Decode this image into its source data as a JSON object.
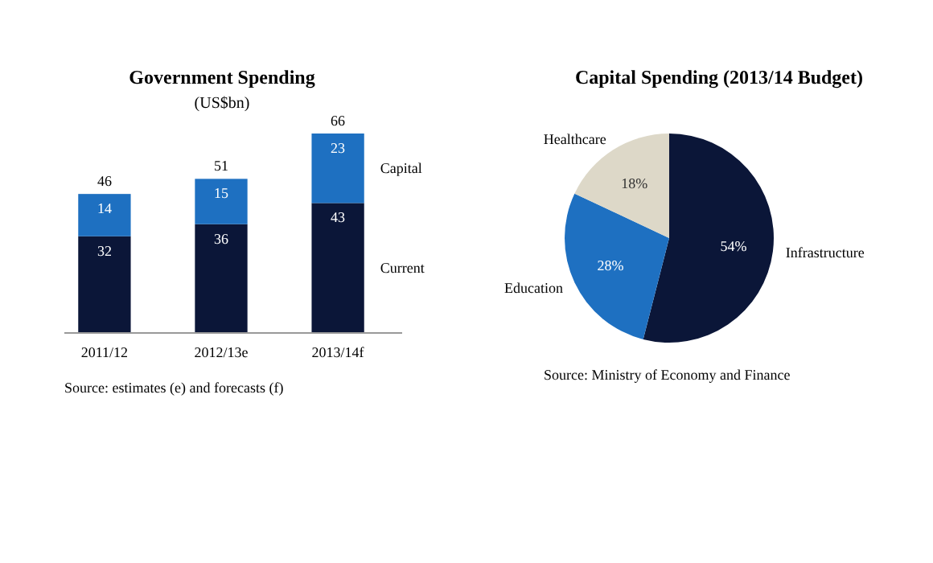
{
  "chart_data": [
    {
      "type": "bar",
      "title": "Government Spending",
      "subtitle": "(US$bn)",
      "categories": [
        "2011/12",
        "2012/13e",
        "2013/14f"
      ],
      "stacked": true,
      "data_labels": true,
      "totals": [
        "46",
        "51",
        "66"
      ],
      "series": [
        {
          "name": "Current",
          "color": "#0b1638",
          "values": [
            32,
            36,
            43
          ]
        },
        {
          "name": "Capital",
          "color": "#1e70c1",
          "values": [
            14,
            15,
            23
          ]
        }
      ],
      "annotations": [
        "Source: estimates (e) and forecasts (f)"
      ]
    },
    {
      "type": "pie",
      "title": "Capital Spending (2013/14 Budget)",
      "categories": [
        "Infrastructure",
        "Education",
        "Healthcare"
      ],
      "values": [
        54,
        28,
        18
      ],
      "colors": [
        "#0b1638",
        "#1e70c1",
        "#ddd8c8"
      ],
      "value_labels": [
        "54%",
        "28%",
        "18%"
      ],
      "annotations": [
        "Source: Ministry of Economy and Finance"
      ]
    }
  ]
}
